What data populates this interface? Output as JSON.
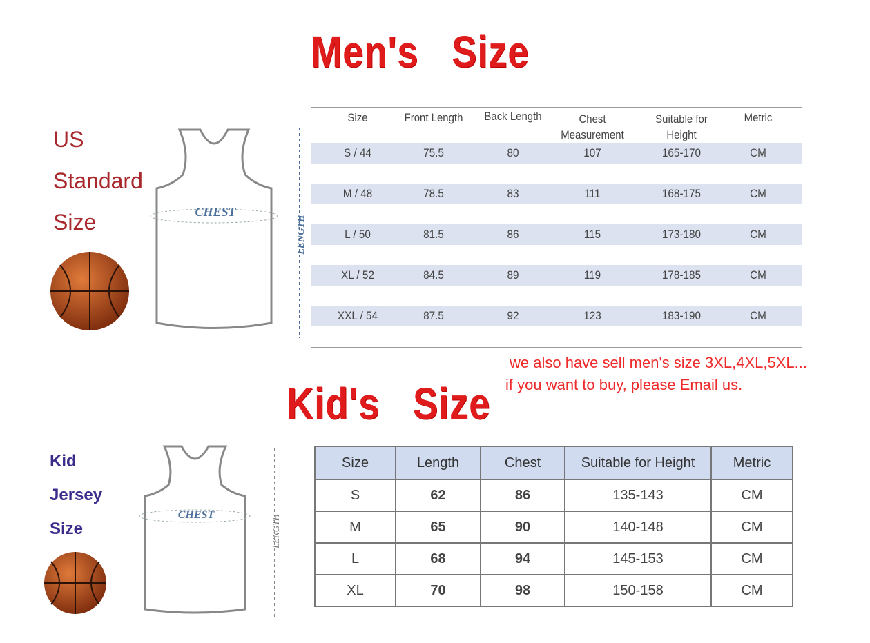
{
  "mens": {
    "title": "Men's   Size",
    "side_label": [
      "US",
      "Standard",
      "Size"
    ],
    "jersey_chest_label": "CHEST",
    "length_label": "LENGTH",
    "columns": [
      "Size",
      "Front Length",
      "Back Length",
      "Chest Measurement",
      "Suitable for Height",
      "Metric"
    ],
    "rows": [
      [
        "S / 44",
        "75.5",
        "80",
        "107",
        "165-170",
        "CM"
      ],
      [
        "M / 48",
        "78.5",
        "83",
        "111",
        "168-175",
        "CM"
      ],
      [
        "L / 50",
        "81.5",
        "86",
        "115",
        "173-180",
        "CM"
      ],
      [
        "XL / 52",
        "84.5",
        "89",
        "119",
        "178-185",
        "CM"
      ],
      [
        "XXL / 54",
        "87.5",
        "92",
        "123",
        "183-190",
        "CM"
      ]
    ],
    "note": [
      "we also have sell men's size 3XL,4XL,5XL...",
      "if you want to buy, please Email us."
    ]
  },
  "kids": {
    "title": "Kid's   Size",
    "side_label": [
      "Kid",
      "Jersey",
      "Size"
    ],
    "jersey_chest_label": "CHEST",
    "length_label": "LENGTH",
    "columns": [
      "Size",
      "Length",
      "Chest",
      "Suitable for Height",
      "Metric"
    ],
    "rows": [
      [
        "S",
        "62",
        "86",
        "135-143",
        "CM"
      ],
      [
        "M",
        "65",
        "90",
        "140-148",
        "CM"
      ],
      [
        "L",
        "68",
        "94",
        "145-153",
        "CM"
      ],
      [
        "XL",
        "70",
        "98",
        "150-158",
        "CM"
      ]
    ]
  },
  "colors": {
    "title_red": "#e01b1b",
    "us_label": "#a8282c",
    "kid_label": "#3b2c8c",
    "band": "#dde2f0",
    "kid_header": "#d0dbef"
  }
}
